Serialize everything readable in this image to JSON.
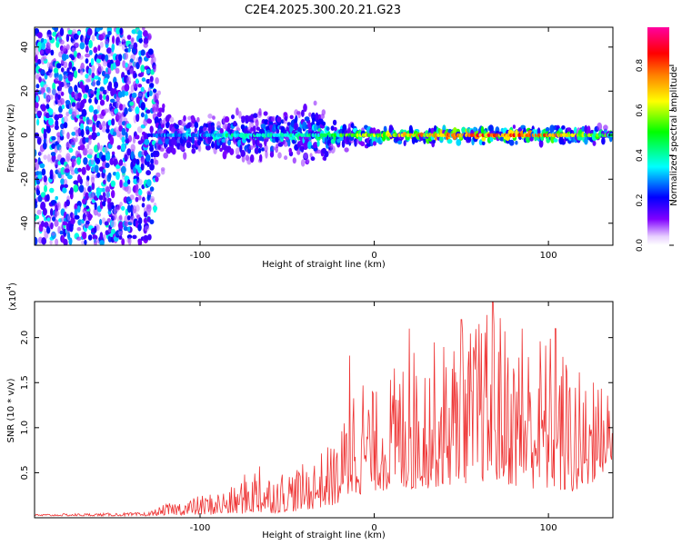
{
  "title": "C2E4.2025.300.20.21.G23",
  "chart_data": [
    {
      "type": "heatmap",
      "xlabel": "Height of straight line (km)",
      "ylabel": "Frequency (Hz)",
      "xlim": [
        -195,
        137
      ],
      "ylim": [
        -50,
        49
      ],
      "x_ticks": [
        -100,
        0,
        100
      ],
      "x_tick_labels": [
        "-100",
        "0",
        "100"
      ],
      "y_ticks": [
        40,
        20,
        0,
        -20,
        -40
      ],
      "y_tick_labels": [
        "40",
        "20",
        "0",
        "-20",
        "-40"
      ],
      "colorbar": {
        "label": "Normalized spectral amplitude",
        "range": [
          0,
          0.97
        ],
        "ticks": [
          0.0,
          0.2,
          0.4,
          0.6,
          0.8
        ],
        "tick_labels": [
          "0.0",
          "0.2",
          "0.4",
          "0.6",
          "0.8"
        ],
        "colors": [
          "#f0e0ff",
          "#8000ff",
          "#0000ff",
          "#00ffff",
          "#00ff00",
          "#ffff00",
          "#ff8000",
          "#ff0000",
          "#ff00a0"
        ]
      },
      "envelope": {
        "x": [
          -195,
          -130,
          -120,
          -100,
          -80,
          -60,
          -50,
          -40,
          -30,
          -20,
          -10,
          0,
          20,
          40,
          60,
          80,
          100,
          120,
          137
        ],
        "half_width": [
          49,
          49,
          12,
          10,
          12,
          14,
          12,
          16,
          14,
          8,
          6,
          5,
          4,
          4,
          4,
          4,
          4,
          4,
          4
        ],
        "peak": [
          0.3,
          0.3,
          0.35,
          0.4,
          0.45,
          0.45,
          0.45,
          0.45,
          0.5,
          0.55,
          0.6,
          0.65,
          0.75,
          0.85,
          0.9,
          0.9,
          0.85,
          0.6,
          0.55
        ]
      }
    },
    {
      "type": "line",
      "xlabel": "Height of straight line (km)",
      "ylabel": "SNR (10 * v/v)",
      "y_multiplier_label": "(x10",
      "y_multiplier_exp": "4",
      "y_multiplier_close": ")",
      "xlim": [
        -195,
        137
      ],
      "ylim": [
        0,
        24000
      ],
      "x_ticks": [
        -100,
        0,
        100
      ],
      "x_tick_labels": [
        "-100",
        "0",
        "100"
      ],
      "y_ticks": [
        5000,
        10000,
        15000,
        20000
      ],
      "y_tick_labels": [
        "0.5",
        "1.0",
        "1.5",
        "2.0"
      ],
      "series": [
        {
          "name": "SNR",
          "color": "#ee3333",
          "envelope_x": [
            -195,
            -130,
            -120,
            -100,
            -80,
            -70,
            -60,
            -40,
            -20,
            -10,
            0,
            20,
            40,
            60,
            70,
            80,
            100,
            120,
            130,
            137
          ],
          "envelope_max": [
            400,
            600,
            1500,
            2500,
            3500,
            6000,
            5000,
            6000,
            9000,
            18000,
            14000,
            19000,
            20000,
            22000,
            24000,
            20000,
            21000,
            16000,
            15000,
            15000
          ],
          "envelope_min": [
            200,
            200,
            300,
            300,
            400,
            500,
            500,
            800,
            1500,
            2500,
            3000,
            3000,
            3500,
            4000,
            4000,
            3500,
            3000,
            2500,
            5000,
            5000
          ],
          "peaks": [
            {
              "x": -66,
              "y": 5700
            },
            {
              "x": -14,
              "y": 18000
            },
            {
              "x": 20,
              "y": 21000
            },
            {
              "x": 50,
              "y": 22000
            },
            {
              "x": 60,
              "y": 21500
            },
            {
              "x": 68,
              "y": 24000
            },
            {
              "x": 85,
              "y": 21000
            },
            {
              "x": 104,
              "y": 21000
            },
            {
              "x": 126,
              "y": 15000
            }
          ]
        }
      ]
    }
  ]
}
